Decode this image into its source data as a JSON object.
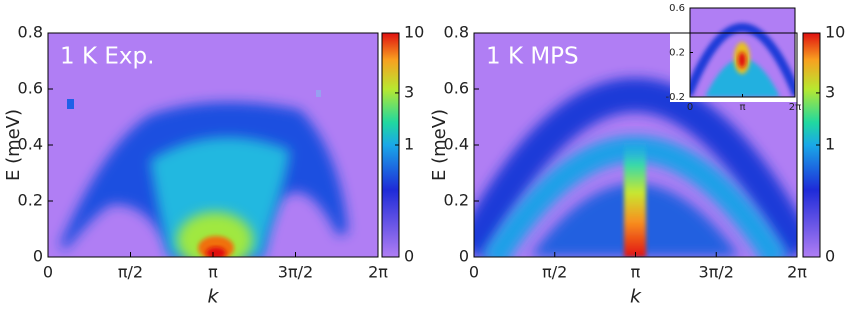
{
  "chart_data": [
    {
      "type": "heatmap",
      "annotation": "1 K Exp.",
      "xlabel": "k",
      "ylabel": "E (meV)",
      "xlim": [
        0,
        6.2832
      ],
      "xticks": [
        0,
        {
          "value": 1.5708,
          "label": "π/2"
        },
        {
          "value": 3.1416,
          "label": "π"
        },
        {
          "value": 4.7124,
          "label": "3π/2"
        },
        {
          "value": 6.2832,
          "label": "2π"
        }
      ],
      "ylim": [
        0,
        0.8
      ],
      "yticks": [
        0,
        0.2,
        0.4,
        0.6,
        0.8
      ],
      "colorbar": {
        "lim": [
          0,
          10
        ],
        "ticks": [
          0,
          1,
          3,
          10
        ]
      }
    },
    {
      "type": "heatmap",
      "annotation": "1 K MPS",
      "xlabel": "k",
      "ylabel": "E (meV)",
      "xlim": [
        0,
        6.2832
      ],
      "xticks": [
        0,
        {
          "value": 1.5708,
          "label": "π/2"
        },
        {
          "value": 3.1416,
          "label": "π"
        },
        {
          "value": 4.7124,
          "label": "3π/2"
        },
        {
          "value": 6.2832,
          "label": "2π"
        }
      ],
      "ylim": [
        0,
        0.8
      ],
      "yticks": [
        0,
        0.2,
        0.4,
        0.6,
        0.8
      ],
      "colorbar": {
        "lim": [
          0,
          10
        ],
        "ticks": [
          0,
          1,
          3,
          10
        ]
      },
      "inset": {
        "xlim": [
          0,
          6.2832
        ],
        "xticks": [
          0,
          {
            "value": 3.1416,
            "label": "π"
          },
          {
            "value": 6.2832,
            "label": "2π"
          }
        ],
        "ylim": [
          -0.2,
          0.6
        ],
        "yticks": [
          -0.2,
          0.2,
          0.6
        ]
      }
    }
  ]
}
